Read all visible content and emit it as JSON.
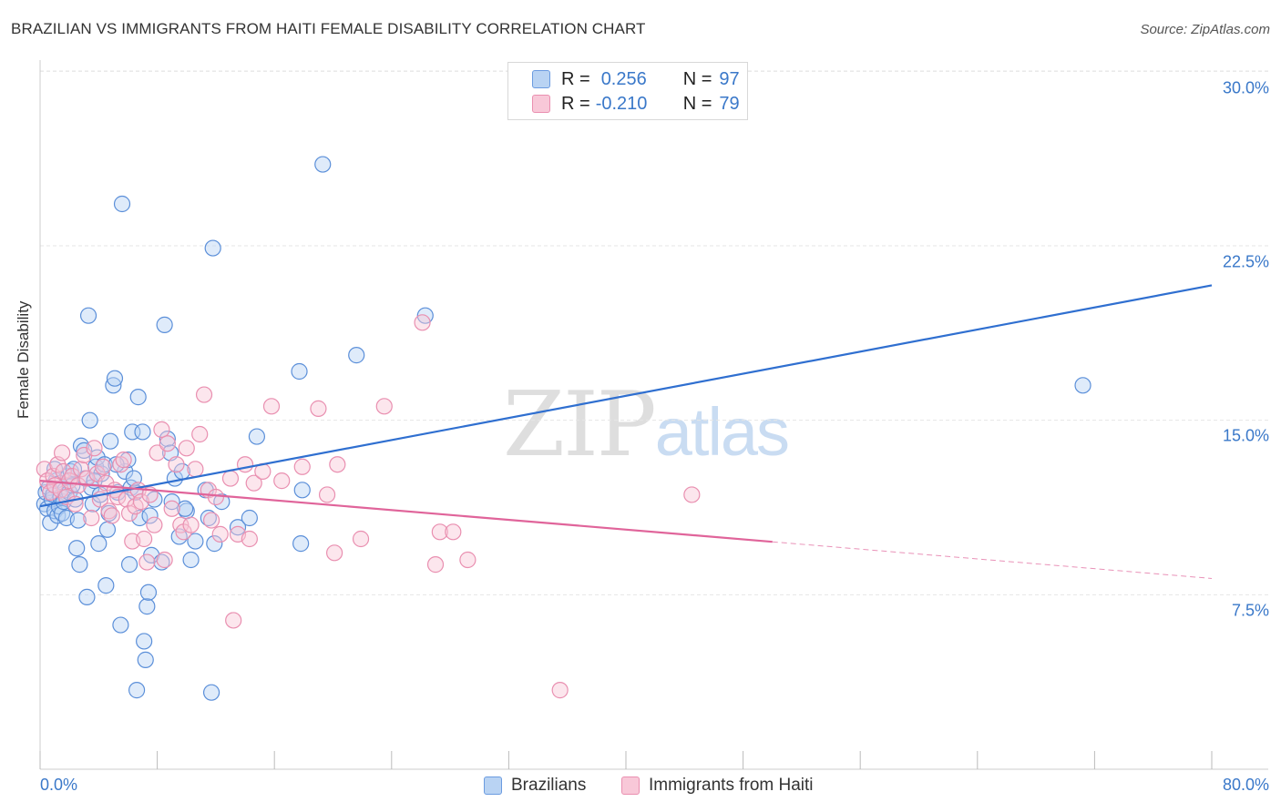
{
  "title": "BRAZILIAN VS IMMIGRANTS FROM HAITI FEMALE DISABILITY CORRELATION CHART",
  "source": "Source: ZipAtlas.com",
  "watermark": {
    "zip": "ZIP",
    "atlas": "atlas"
  },
  "colors": {
    "blue_fill": "#b9d3f3",
    "blue_stroke": "#5b8fd9",
    "blue_line": "#2f6fd0",
    "pink_fill": "#f8c8d8",
    "pink_stroke": "#e98fb0",
    "pink_line": "#e0649a",
    "tick_text": "#3a78c9"
  },
  "legend": {
    "rows": [
      {
        "r_label": "R =",
        "r_value": "0.256",
        "n_label": "N =",
        "n_value": "97"
      },
      {
        "r_label": "R =",
        "r_value": "-0.210",
        "n_label": "N =",
        "n_value": "79"
      }
    ],
    "bottom": [
      "Brazilians",
      "Immigrants from Haiti"
    ]
  },
  "chart_data": {
    "type": "scatter",
    "title": "BRAZILIAN VS IMMIGRANTS FROM HAITI FEMALE DISABILITY CORRELATION CHART",
    "xlabel": "",
    "ylabel": "Female Disability",
    "xlim": [
      0,
      80
    ],
    "ylim": [
      0,
      31.5
    ],
    "x_tick_labels": [
      "0.0%",
      "80.0%"
    ],
    "y_ticks": [
      7.5,
      15.0,
      22.5,
      30.0
    ],
    "y_tick_labels": [
      "7.5%",
      "15.0%",
      "22.5%",
      "30.0%"
    ],
    "grid": true,
    "series": [
      {
        "name": "Brazilians",
        "r": 0.256,
        "n": 97,
        "trend": {
          "x": [
            0,
            80
          ],
          "y": [
            11.3,
            20.8
          ],
          "dashed_from": null
        },
        "points": [
          [
            0.3,
            11.4
          ],
          [
            0.4,
            11.9
          ],
          [
            0.5,
            11.2
          ],
          [
            0.6,
            12.1
          ],
          [
            0.7,
            10.6
          ],
          [
            0.8,
            11.6
          ],
          [
            0.9,
            11.8
          ],
          [
            1.0,
            11.1
          ],
          [
            1.1,
            12.4
          ],
          [
            1.2,
            10.9
          ],
          [
            1.3,
            11.3
          ],
          [
            1.4,
            11.7
          ],
          [
            1.5,
            11.0
          ],
          [
            1.6,
            11.5
          ],
          [
            1.7,
            12.0
          ],
          [
            1.8,
            10.8
          ],
          [
            1.9,
            12.6
          ],
          [
            2.0,
            11.9
          ],
          [
            2.1,
            12.8
          ],
          [
            2.2,
            12.2
          ],
          [
            2.4,
            11.6
          ],
          [
            2.5,
            9.5
          ],
          [
            2.6,
            10.7
          ],
          [
            2.7,
            8.8
          ],
          [
            2.8,
            13.9
          ],
          [
            3.0,
            13.7
          ],
          [
            3.1,
            12.5
          ],
          [
            3.2,
            7.4
          ],
          [
            3.3,
            19.5
          ],
          [
            3.4,
            15.0
          ],
          [
            3.5,
            12.1
          ],
          [
            3.6,
            11.4
          ],
          [
            3.8,
            13.0
          ],
          [
            3.9,
            13.4
          ],
          [
            4.0,
            9.7
          ],
          [
            4.1,
            11.8
          ],
          [
            4.2,
            12.7
          ],
          [
            4.4,
            13.1
          ],
          [
            4.5,
            7.9
          ],
          [
            4.6,
            10.3
          ],
          [
            4.7,
            11.0
          ],
          [
            4.8,
            14.1
          ],
          [
            5.0,
            16.5
          ],
          [
            5.1,
            16.8
          ],
          [
            5.3,
            11.9
          ],
          [
            5.5,
            6.2
          ],
          [
            5.6,
            24.3
          ],
          [
            5.8,
            12.8
          ],
          [
            6.0,
            13.3
          ],
          [
            6.1,
            8.8
          ],
          [
            6.2,
            12.1
          ],
          [
            6.3,
            14.5
          ],
          [
            6.5,
            11.9
          ],
          [
            6.6,
            3.4
          ],
          [
            6.7,
            16.0
          ],
          [
            6.8,
            10.8
          ],
          [
            7.0,
            14.5
          ],
          [
            7.1,
            5.5
          ],
          [
            7.2,
            4.7
          ],
          [
            7.3,
            7.0
          ],
          [
            7.4,
            7.6
          ],
          [
            7.5,
            10.9
          ],
          [
            7.6,
            9.2
          ],
          [
            8.3,
            8.9
          ],
          [
            8.5,
            19.1
          ],
          [
            8.7,
            14.2
          ],
          [
            8.9,
            13.6
          ],
          [
            9.0,
            11.5
          ],
          [
            9.2,
            12.5
          ],
          [
            9.5,
            10.0
          ],
          [
            9.7,
            12.8
          ],
          [
            10.0,
            11.1
          ],
          [
            10.3,
            9.0
          ],
          [
            10.6,
            9.8
          ],
          [
            11.3,
            12.0
          ],
          [
            11.5,
            10.8
          ],
          [
            11.7,
            3.3
          ],
          [
            11.8,
            22.4
          ],
          [
            11.9,
            9.7
          ],
          [
            13.5,
            10.4
          ],
          [
            14.3,
            10.8
          ],
          [
            14.8,
            14.3
          ],
          [
            17.7,
            17.1
          ],
          [
            17.8,
            9.7
          ],
          [
            17.9,
            12.0
          ],
          [
            19.3,
            26.0
          ],
          [
            21.6,
            17.8
          ],
          [
            26.3,
            19.5
          ],
          [
            1.0,
            12.9
          ],
          [
            2.3,
            12.9
          ],
          [
            3.7,
            12.4
          ],
          [
            5.2,
            13.1
          ],
          [
            6.4,
            12.5
          ],
          [
            7.8,
            11.6
          ],
          [
            9.9,
            11.2
          ],
          [
            12.4,
            11.5
          ],
          [
            71.2,
            16.5
          ]
        ]
      },
      {
        "name": "Immigrants from Haiti",
        "r": -0.21,
        "n": 79,
        "trend": {
          "x": [
            0,
            80
          ],
          "y": [
            12.4,
            8.2
          ],
          "dashed_from": 50
        },
        "points": [
          [
            0.3,
            12.9
          ],
          [
            0.5,
            12.4
          ],
          [
            0.7,
            11.9
          ],
          [
            0.9,
            12.6
          ],
          [
            1.0,
            12.2
          ],
          [
            1.2,
            13.1
          ],
          [
            1.4,
            12.0
          ],
          [
            1.5,
            13.6
          ],
          [
            1.6,
            12.8
          ],
          [
            1.8,
            11.7
          ],
          [
            2.0,
            12.4
          ],
          [
            2.2,
            12.6
          ],
          [
            2.4,
            11.4
          ],
          [
            2.6,
            12.2
          ],
          [
            2.8,
            12.9
          ],
          [
            3.0,
            13.5
          ],
          [
            3.2,
            12.5
          ],
          [
            3.5,
            10.8
          ],
          [
            3.7,
            13.8
          ],
          [
            3.9,
            12.7
          ],
          [
            4.1,
            11.6
          ],
          [
            4.3,
            13.0
          ],
          [
            4.5,
            12.3
          ],
          [
            4.7,
            11.1
          ],
          [
            4.9,
            10.9
          ],
          [
            5.1,
            12.0
          ],
          [
            5.3,
            11.7
          ],
          [
            5.5,
            13.1
          ],
          [
            5.7,
            13.3
          ],
          [
            5.9,
            11.6
          ],
          [
            6.1,
            11.0
          ],
          [
            6.3,
            9.8
          ],
          [
            6.5,
            11.3
          ],
          [
            6.7,
            12.0
          ],
          [
            6.9,
            11.5
          ],
          [
            7.1,
            9.9
          ],
          [
            7.3,
            8.9
          ],
          [
            7.5,
            11.8
          ],
          [
            7.8,
            10.5
          ],
          [
            8.0,
            13.6
          ],
          [
            8.3,
            14.6
          ],
          [
            8.5,
            9.0
          ],
          [
            8.7,
            14.0
          ],
          [
            9.0,
            11.2
          ],
          [
            9.3,
            13.1
          ],
          [
            9.6,
            10.5
          ],
          [
            9.8,
            10.2
          ],
          [
            10.0,
            13.8
          ],
          [
            10.3,
            10.5
          ],
          [
            10.6,
            12.9
          ],
          [
            10.9,
            14.4
          ],
          [
            11.2,
            16.1
          ],
          [
            11.5,
            12.0
          ],
          [
            11.7,
            10.7
          ],
          [
            12.0,
            11.7
          ],
          [
            12.3,
            10.1
          ],
          [
            13.0,
            12.5
          ],
          [
            13.2,
            6.4
          ],
          [
            13.5,
            10.1
          ],
          [
            14.0,
            13.1
          ],
          [
            14.3,
            9.9
          ],
          [
            14.6,
            12.3
          ],
          [
            15.2,
            12.8
          ],
          [
            15.8,
            15.6
          ],
          [
            16.5,
            12.4
          ],
          [
            17.9,
            13.0
          ],
          [
            19.0,
            15.5
          ],
          [
            19.6,
            11.8
          ],
          [
            20.1,
            9.3
          ],
          [
            20.3,
            13.1
          ],
          [
            21.9,
            9.9
          ],
          [
            23.5,
            15.6
          ],
          [
            26.1,
            19.2
          ],
          [
            27.0,
            8.8
          ],
          [
            27.3,
            10.2
          ],
          [
            28.2,
            10.2
          ],
          [
            29.2,
            9.0
          ],
          [
            35.5,
            3.4
          ],
          [
            44.5,
            11.8
          ]
        ]
      }
    ]
  }
}
